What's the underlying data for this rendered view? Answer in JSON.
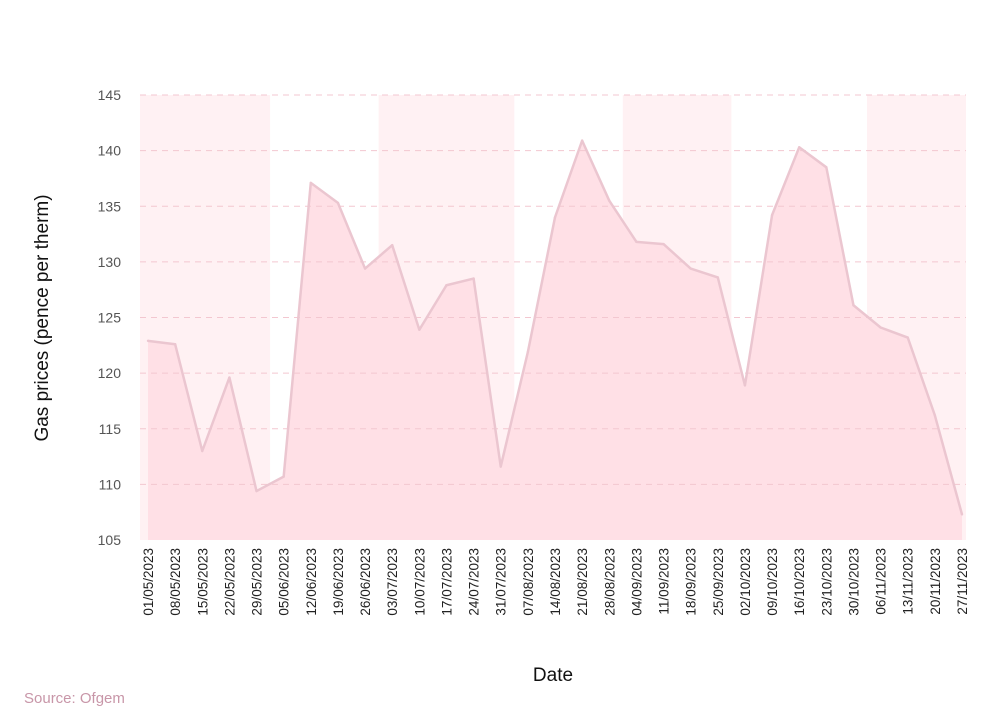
{
  "chart_data": {
    "type": "area",
    "xlabel": "Date",
    "ylabel": "Gas prices (pence per therm)",
    "ylim": [
      105,
      145
    ],
    "yticks": [
      105,
      110,
      115,
      120,
      125,
      130,
      135,
      140,
      145
    ],
    "grid": true,
    "x": [
      "01/05/2023",
      "08/05/2023",
      "15/05/2023",
      "22/05/2023",
      "29/05/2023",
      "05/06/2023",
      "12/06/2023",
      "19/06/2023",
      "26/06/2023",
      "03/07/2023",
      "10/07/2023",
      "17/07/2023",
      "24/07/2023",
      "31/07/2023",
      "07/08/2023",
      "14/08/2023",
      "21/08/2023",
      "28/08/2023",
      "04/09/2023",
      "11/09/2023",
      "18/09/2023",
      "25/09/2023",
      "02/10/2023",
      "09/10/2023",
      "16/10/2023",
      "23/10/2023",
      "30/10/2023",
      "06/11/2023",
      "13/11/2023",
      "20/11/2023",
      "27/11/2023"
    ],
    "series": [
      {
        "values": [
          122.9,
          122.6,
          113.0,
          119.6,
          109.4,
          110.7,
          137.1,
          135.3,
          129.4,
          131.5,
          123.9,
          127.9,
          128.5,
          111.6,
          121.9,
          134.0,
          140.9,
          135.5,
          131.8,
          131.6,
          129.4,
          128.6,
          118.9,
          134.2,
          140.3,
          138.5,
          126.1,
          124.1,
          123.2,
          116.2,
          107.3
        ]
      }
    ],
    "bands": [
      [
        0,
        4
      ],
      [
        9,
        13
      ],
      [
        18,
        21
      ],
      [
        27,
        30
      ]
    ],
    "colors": {
      "area": "#ffe0e6",
      "line": "#ebc6d0",
      "band": "#fff1f3",
      "grid": "#f3c7d0"
    },
    "source": "Source: Ofgem"
  }
}
